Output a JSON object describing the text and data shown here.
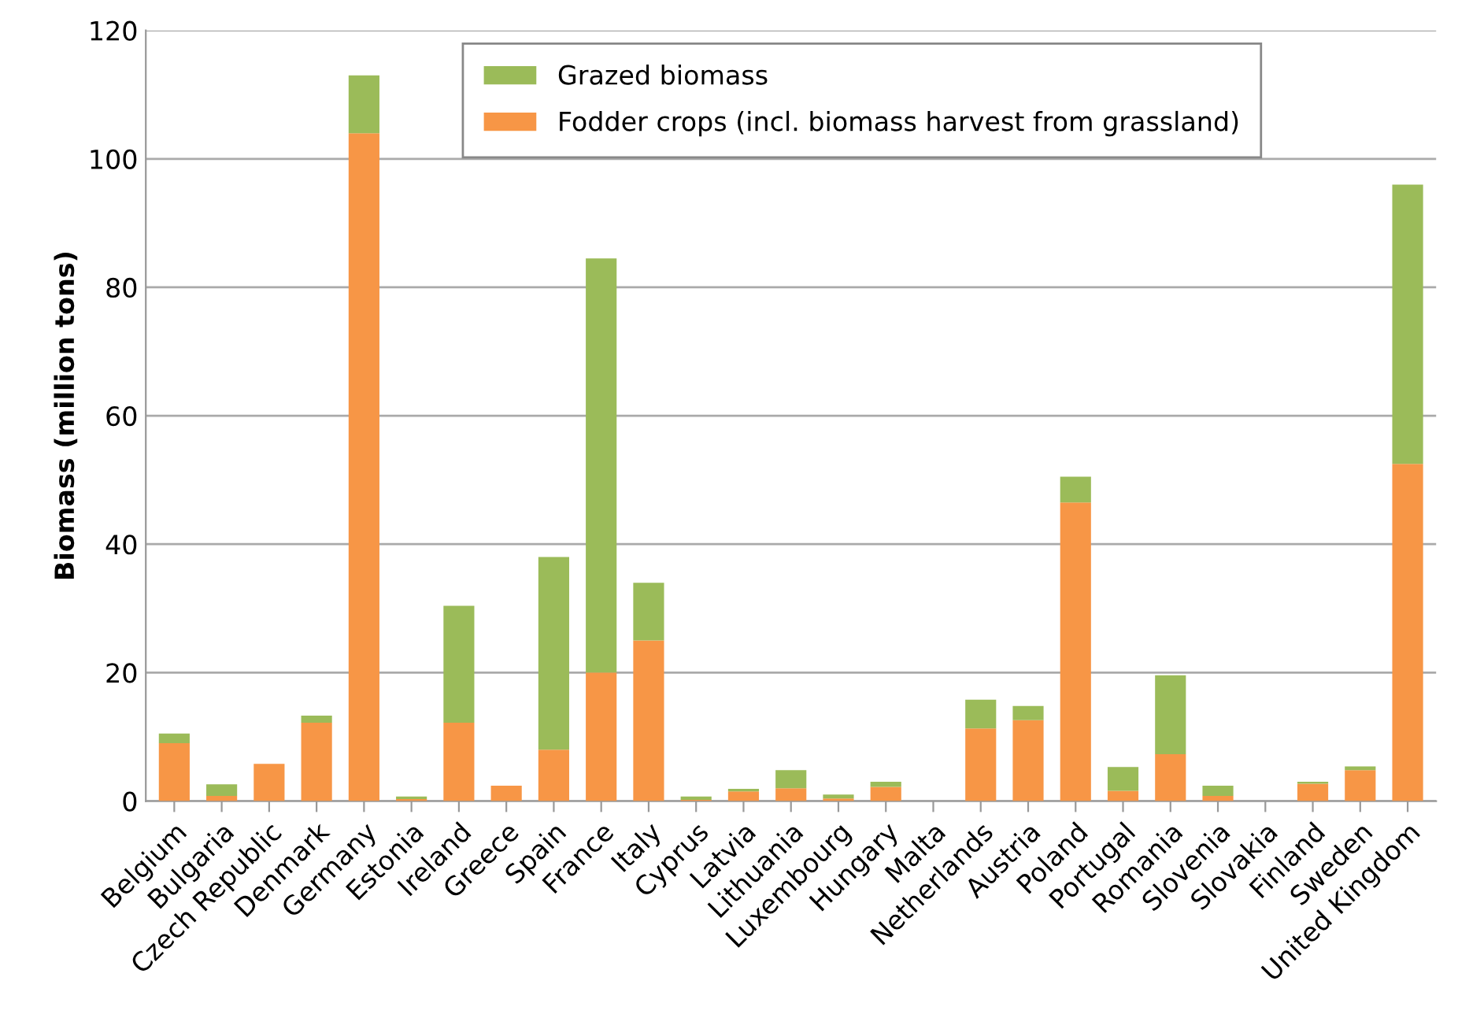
{
  "chart_data": {
    "type": "bar",
    "stacked": true,
    "ylabel": "Biomass (million tons)",
    "categories": [
      "Belgium",
      "Bulgaria",
      "Czech Republic",
      "Denmark",
      "Germany",
      "Estonia",
      "Ireland",
      "Greece",
      "Spain",
      "France",
      "Italy",
      "Cyprus",
      "Latvia",
      "Lithuania",
      "Luxembourg",
      "Hungary",
      "Malta",
      "Netherlands",
      "Austria",
      "Poland",
      "Portugal",
      "Romania",
      "Slovenia",
      "Slovakia",
      "Finland",
      "Sweden",
      "United Kingdom"
    ],
    "series": [
      {
        "name": "Fodder crops (incl. biomass harvest from grassland)",
        "color": "#f79646",
        "values": [
          9,
          0.8,
          5.8,
          12.2,
          104,
          0.3,
          12.2,
          2.4,
          8,
          20,
          25,
          0.2,
          1.5,
          2,
          0.4,
          2.2,
          0,
          11.3,
          12.6,
          46.5,
          1.6,
          7.3,
          0.8,
          0,
          2.7,
          4.8,
          52.5
        ]
      },
      {
        "name": "Grazed biomass",
        "color": "#9bbb59",
        "values": [
          1.5,
          1.8,
          0,
          1.1,
          9,
          0.4,
          18.2,
          0,
          30,
          64.5,
          9,
          0.5,
          0.4,
          2.8,
          0.6,
          0.8,
          0,
          4.5,
          2.2,
          4,
          3.7,
          12.3,
          1.6,
          0,
          0.3,
          0.6,
          43.5
        ]
      }
    ],
    "ylim": [
      0,
      120
    ],
    "yticks": [
      0,
      20,
      40,
      60,
      80,
      100,
      120
    ],
    "grid": "y",
    "legend": "top"
  }
}
